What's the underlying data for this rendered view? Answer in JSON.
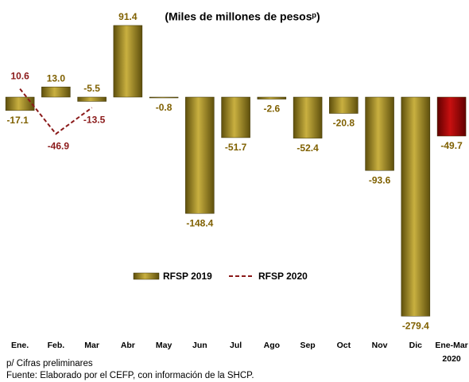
{
  "chart_data": {
    "type": "bar",
    "title": "(Miles de millones de pesosᵖ)",
    "categories": [
      "Ene.",
      "Feb.",
      "Mar",
      "Abr",
      "May",
      "Jun",
      "Jul",
      "Ago",
      "Sep",
      "Oct",
      "Nov",
      "Dic",
      "Ene-Mar 2020"
    ],
    "series": [
      {
        "name": "RFSP 2019",
        "type": "bar",
        "color": "#9c8520",
        "colors": [
          "#9c8520",
          "#9c8520",
          "#9c8520",
          "#9c8520",
          "#9c8520",
          "#9c8520",
          "#9c8520",
          "#9c8520",
          "#9c8520",
          "#9c8520",
          "#9c8520",
          "#9c8520",
          "#a00000"
        ],
        "values": [
          -17.1,
          13.0,
          -5.5,
          91.4,
          -0.8,
          -148.4,
          -51.7,
          -2.6,
          -52.4,
          -20.8,
          -93.6,
          -279.4,
          -49.7
        ],
        "value_labels": [
          "-17.1",
          "13.0",
          "-5.5",
          "91.4",
          "-0.8",
          "-148.4",
          "-51.7",
          "-2.6",
          "-52.4",
          "-20.8",
          "-93.6",
          "-279.4",
          "-49.7"
        ]
      },
      {
        "name": "RFSP 2020",
        "type": "line",
        "color": "#8b1a1a",
        "dashed": true,
        "values": [
          10.6,
          -46.9,
          -13.5,
          null,
          null,
          null,
          null,
          null,
          null,
          null,
          null,
          null,
          null
        ],
        "value_labels": [
          "10.6",
          "-46.9",
          "-13.5",
          null,
          null,
          null,
          null,
          null,
          null,
          null,
          null,
          null,
          null
        ]
      }
    ],
    "ylim": [
      -290,
      100
    ],
    "footnotes": [
      "p/ Cifras preliminares",
      "Fuente: Elaborado por el CEFP, con información de la SHCP."
    ]
  }
}
